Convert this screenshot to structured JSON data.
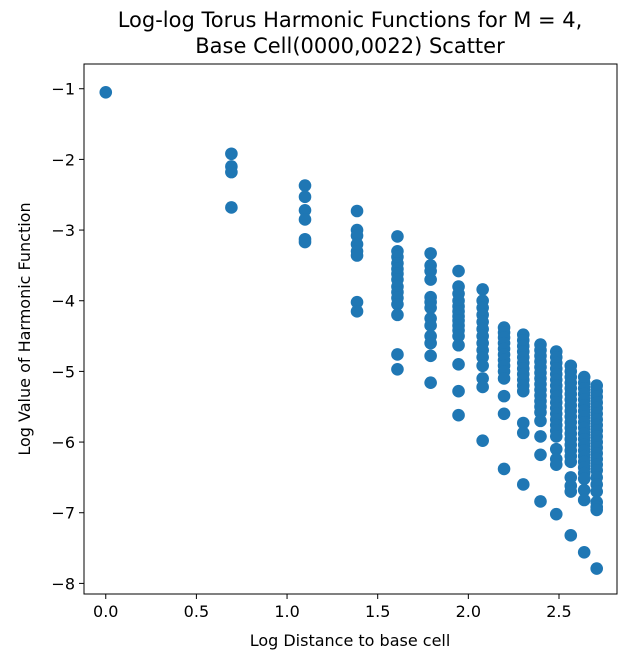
{
  "chart_data": {
    "type": "scatter",
    "title_lines": [
      "Log-log Torus Harmonic Functions for M = 4,",
      "Base Cell(0000,0022) Scatter"
    ],
    "xlabel": "Log Distance to base cell",
    "ylabel": "Log Value of Harmonic Function",
    "xlim": [
      -0.12,
      2.82
    ],
    "ylim": [
      -8.15,
      -0.65
    ],
    "xticks": [
      0.0,
      0.5,
      1.0,
      1.5,
      2.0,
      2.5
    ],
    "xtick_labels": [
      "0.0",
      "0.5",
      "1.0",
      "1.5",
      "2.0",
      "2.5"
    ],
    "yticks": [
      -1,
      -2,
      -3,
      -4,
      -5,
      -6,
      -7,
      -8
    ],
    "ytick_labels": [
      "−1",
      "−2",
      "−3",
      "−4",
      "−5",
      "−6",
      "−7",
      "−8"
    ],
    "grid": false,
    "marker_color": "#1f77b4",
    "series": [
      {
        "points": [
          [
            0.0,
            -1.05
          ],
          [
            0.693,
            -1.92
          ],
          [
            0.693,
            -2.1
          ],
          [
            0.693,
            -2.18
          ],
          [
            0.693,
            -2.68
          ],
          [
            1.099,
            -2.37
          ],
          [
            1.099,
            -2.53
          ],
          [
            1.099,
            -2.72
          ],
          [
            1.099,
            -2.85
          ],
          [
            1.099,
            -3.13
          ],
          [
            1.099,
            -3.17
          ],
          [
            1.386,
            -2.73
          ],
          [
            1.386,
            -3.0
          ],
          [
            1.386,
            -3.08
          ],
          [
            1.386,
            -3.2
          ],
          [
            1.386,
            -3.3
          ],
          [
            1.386,
            -3.36
          ],
          [
            1.386,
            -4.02
          ],
          [
            1.386,
            -4.15
          ],
          [
            1.609,
            -3.09
          ],
          [
            1.609,
            -3.3
          ],
          [
            1.609,
            -3.38
          ],
          [
            1.609,
            -3.47
          ],
          [
            1.609,
            -3.55
          ],
          [
            1.609,
            -3.62
          ],
          [
            1.609,
            -3.7
          ],
          [
            1.609,
            -3.8
          ],
          [
            1.609,
            -3.88
          ],
          [
            1.609,
            -3.96
          ],
          [
            1.609,
            -4.05
          ],
          [
            1.609,
            -4.2
          ],
          [
            1.609,
            -4.76
          ],
          [
            1.609,
            -4.97
          ],
          [
            1.792,
            -3.33
          ],
          [
            1.792,
            -3.5
          ],
          [
            1.792,
            -3.58
          ],
          [
            1.792,
            -3.7
          ],
          [
            1.792,
            -3.95
          ],
          [
            1.792,
            -4.02
          ],
          [
            1.792,
            -4.1
          ],
          [
            1.792,
            -4.25
          ],
          [
            1.792,
            -4.35
          ],
          [
            1.792,
            -4.5
          ],
          [
            1.792,
            -4.6
          ],
          [
            1.792,
            -4.78
          ],
          [
            1.792,
            -5.16
          ],
          [
            1.946,
            -3.58
          ],
          [
            1.946,
            -3.8
          ],
          [
            1.946,
            -3.9
          ],
          [
            1.946,
            -4.0
          ],
          [
            1.946,
            -4.08
          ],
          [
            1.946,
            -4.15
          ],
          [
            1.946,
            -4.22
          ],
          [
            1.946,
            -4.28
          ],
          [
            1.946,
            -4.35
          ],
          [
            1.946,
            -4.42
          ],
          [
            1.946,
            -4.5
          ],
          [
            1.946,
            -4.63
          ],
          [
            1.946,
            -4.9
          ],
          [
            1.946,
            -5.28
          ],
          [
            1.946,
            -5.62
          ],
          [
            2.079,
            -3.84
          ],
          [
            2.079,
            -4.0
          ],
          [
            2.079,
            -4.1
          ],
          [
            2.079,
            -4.2
          ],
          [
            2.079,
            -4.3
          ],
          [
            2.079,
            -4.4
          ],
          [
            2.079,
            -4.5
          ],
          [
            2.079,
            -4.6
          ],
          [
            2.079,
            -4.7
          ],
          [
            2.079,
            -4.8
          ],
          [
            2.079,
            -4.92
          ],
          [
            2.079,
            -5.1
          ],
          [
            2.079,
            -5.22
          ],
          [
            2.079,
            -5.98
          ],
          [
            2.197,
            -4.38
          ],
          [
            2.197,
            -4.45
          ],
          [
            2.197,
            -4.52
          ],
          [
            2.197,
            -4.6
          ],
          [
            2.197,
            -4.68
          ],
          [
            2.197,
            -4.76
          ],
          [
            2.197,
            -4.84
          ],
          [
            2.197,
            -4.92
          ],
          [
            2.197,
            -5.0
          ],
          [
            2.197,
            -5.1
          ],
          [
            2.197,
            -5.35
          ],
          [
            2.197,
            -5.6
          ],
          [
            2.197,
            -6.38
          ],
          [
            2.303,
            -4.48
          ],
          [
            2.303,
            -4.56
          ],
          [
            2.303,
            -4.64
          ],
          [
            2.303,
            -4.72
          ],
          [
            2.303,
            -4.8
          ],
          [
            2.303,
            -4.88
          ],
          [
            2.303,
            -4.96
          ],
          [
            2.303,
            -5.04
          ],
          [
            2.303,
            -5.12
          ],
          [
            2.303,
            -5.2
          ],
          [
            2.303,
            -5.28
          ],
          [
            2.303,
            -5.73
          ],
          [
            2.303,
            -5.87
          ],
          [
            2.303,
            -6.6
          ],
          [
            2.398,
            -4.62
          ],
          [
            2.398,
            -4.7
          ],
          [
            2.398,
            -4.78
          ],
          [
            2.398,
            -4.86
          ],
          [
            2.398,
            -4.94
          ],
          [
            2.398,
            -5.02
          ],
          [
            2.398,
            -5.1
          ],
          [
            2.398,
            -5.18
          ],
          [
            2.398,
            -5.26
          ],
          [
            2.398,
            -5.34
          ],
          [
            2.398,
            -5.42
          ],
          [
            2.398,
            -5.5
          ],
          [
            2.398,
            -5.58
          ],
          [
            2.398,
            -5.7
          ],
          [
            2.398,
            -5.92
          ],
          [
            2.398,
            -6.18
          ],
          [
            2.398,
            -6.84
          ],
          [
            2.485,
            -4.72
          ],
          [
            2.485,
            -4.8
          ],
          [
            2.485,
            -4.88
          ],
          [
            2.485,
            -4.96
          ],
          [
            2.485,
            -5.04
          ],
          [
            2.485,
            -5.12
          ],
          [
            2.485,
            -5.2
          ],
          [
            2.485,
            -5.28
          ],
          [
            2.485,
            -5.36
          ],
          [
            2.485,
            -5.44
          ],
          [
            2.485,
            -5.52
          ],
          [
            2.485,
            -5.6
          ],
          [
            2.485,
            -5.68
          ],
          [
            2.485,
            -5.76
          ],
          [
            2.485,
            -5.84
          ],
          [
            2.485,
            -5.92
          ],
          [
            2.485,
            -6.1
          ],
          [
            2.485,
            -6.24
          ],
          [
            2.485,
            -6.32
          ],
          [
            2.485,
            -7.02
          ],
          [
            2.565,
            -4.92
          ],
          [
            2.565,
            -5.0
          ],
          [
            2.565,
            -5.08
          ],
          [
            2.565,
            -5.16
          ],
          [
            2.565,
            -5.24
          ],
          [
            2.565,
            -5.32
          ],
          [
            2.565,
            -5.4
          ],
          [
            2.565,
            -5.48
          ],
          [
            2.565,
            -5.56
          ],
          [
            2.565,
            -5.64
          ],
          [
            2.565,
            -5.72
          ],
          [
            2.565,
            -5.8
          ],
          [
            2.565,
            -5.88
          ],
          [
            2.565,
            -5.96
          ],
          [
            2.565,
            -6.04
          ],
          [
            2.565,
            -6.12
          ],
          [
            2.565,
            -6.2
          ],
          [
            2.565,
            -6.28
          ],
          [
            2.565,
            -6.5
          ],
          [
            2.565,
            -6.62
          ],
          [
            2.565,
            -6.7
          ],
          [
            2.565,
            -7.32
          ],
          [
            2.639,
            -5.08
          ],
          [
            2.639,
            -5.16
          ],
          [
            2.639,
            -5.24
          ],
          [
            2.639,
            -5.32
          ],
          [
            2.639,
            -5.4
          ],
          [
            2.639,
            -5.48
          ],
          [
            2.639,
            -5.56
          ],
          [
            2.639,
            -5.64
          ],
          [
            2.639,
            -5.72
          ],
          [
            2.639,
            -5.8
          ],
          [
            2.639,
            -5.88
          ],
          [
            2.639,
            -5.96
          ],
          [
            2.639,
            -6.04
          ],
          [
            2.639,
            -6.12
          ],
          [
            2.639,
            -6.2
          ],
          [
            2.639,
            -6.28
          ],
          [
            2.639,
            -6.36
          ],
          [
            2.639,
            -6.44
          ],
          [
            2.639,
            -6.52
          ],
          [
            2.639,
            -6.68
          ],
          [
            2.639,
            -6.82
          ],
          [
            2.639,
            -7.56
          ],
          [
            2.708,
            -5.2
          ],
          [
            2.708,
            -5.28
          ],
          [
            2.708,
            -5.36
          ],
          [
            2.708,
            -5.44
          ],
          [
            2.708,
            -5.52
          ],
          [
            2.708,
            -5.6
          ],
          [
            2.708,
            -5.68
          ],
          [
            2.708,
            -5.76
          ],
          [
            2.708,
            -5.84
          ],
          [
            2.708,
            -5.92
          ],
          [
            2.708,
            -6.0
          ],
          [
            2.708,
            -6.08
          ],
          [
            2.708,
            -6.16
          ],
          [
            2.708,
            -6.24
          ],
          [
            2.708,
            -6.32
          ],
          [
            2.708,
            -6.4
          ],
          [
            2.708,
            -6.5
          ],
          [
            2.708,
            -6.6
          ],
          [
            2.708,
            -6.7
          ],
          [
            2.708,
            -6.85
          ],
          [
            2.708,
            -6.92
          ],
          [
            2.708,
            -6.96
          ],
          [
            2.708,
            -7.79
          ]
        ]
      }
    ]
  }
}
